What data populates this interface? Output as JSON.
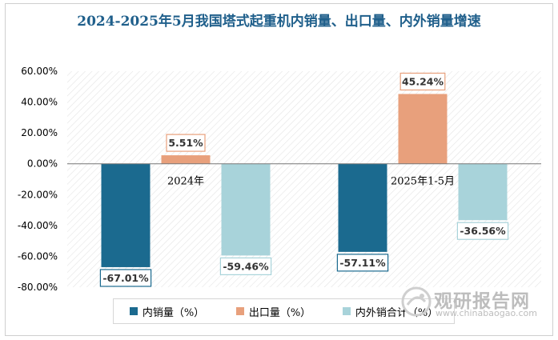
{
  "chart_data": {
    "type": "bar",
    "title": "2024-2025年5月我国塔式起重机内销量、出口量、内外销量增速",
    "categories": [
      "2024年",
      "2025年1-5月"
    ],
    "series": [
      {
        "name": "内销量（%）",
        "values": [
          -67.01,
          -57.11
        ],
        "color": "#1b6a8f"
      },
      {
        "name": "出口量（%）",
        "values": [
          5.51,
          45.24
        ],
        "color": "#e8a07c"
      },
      {
        "name": "内外销合计（%）",
        "values": [
          -59.46,
          -36.56
        ],
        "color": "#a8d3da"
      }
    ],
    "data_labels": [
      [
        "-67.01%",
        "-57.11%"
      ],
      [
        "5.51%",
        "45.24%"
      ],
      [
        "-59.46%",
        "-36.56%"
      ]
    ],
    "ylim": [
      -80,
      60
    ],
    "yticks": [
      "60.00%",
      "40.00%",
      "20.00%",
      "0.00%",
      "-20.00%",
      "-40.00%",
      "-60.00%",
      "-80.00%"
    ],
    "legend_position": "bottom"
  },
  "watermark": {
    "brand": "观研报告网",
    "url": "www.chinabaogao.com"
  }
}
